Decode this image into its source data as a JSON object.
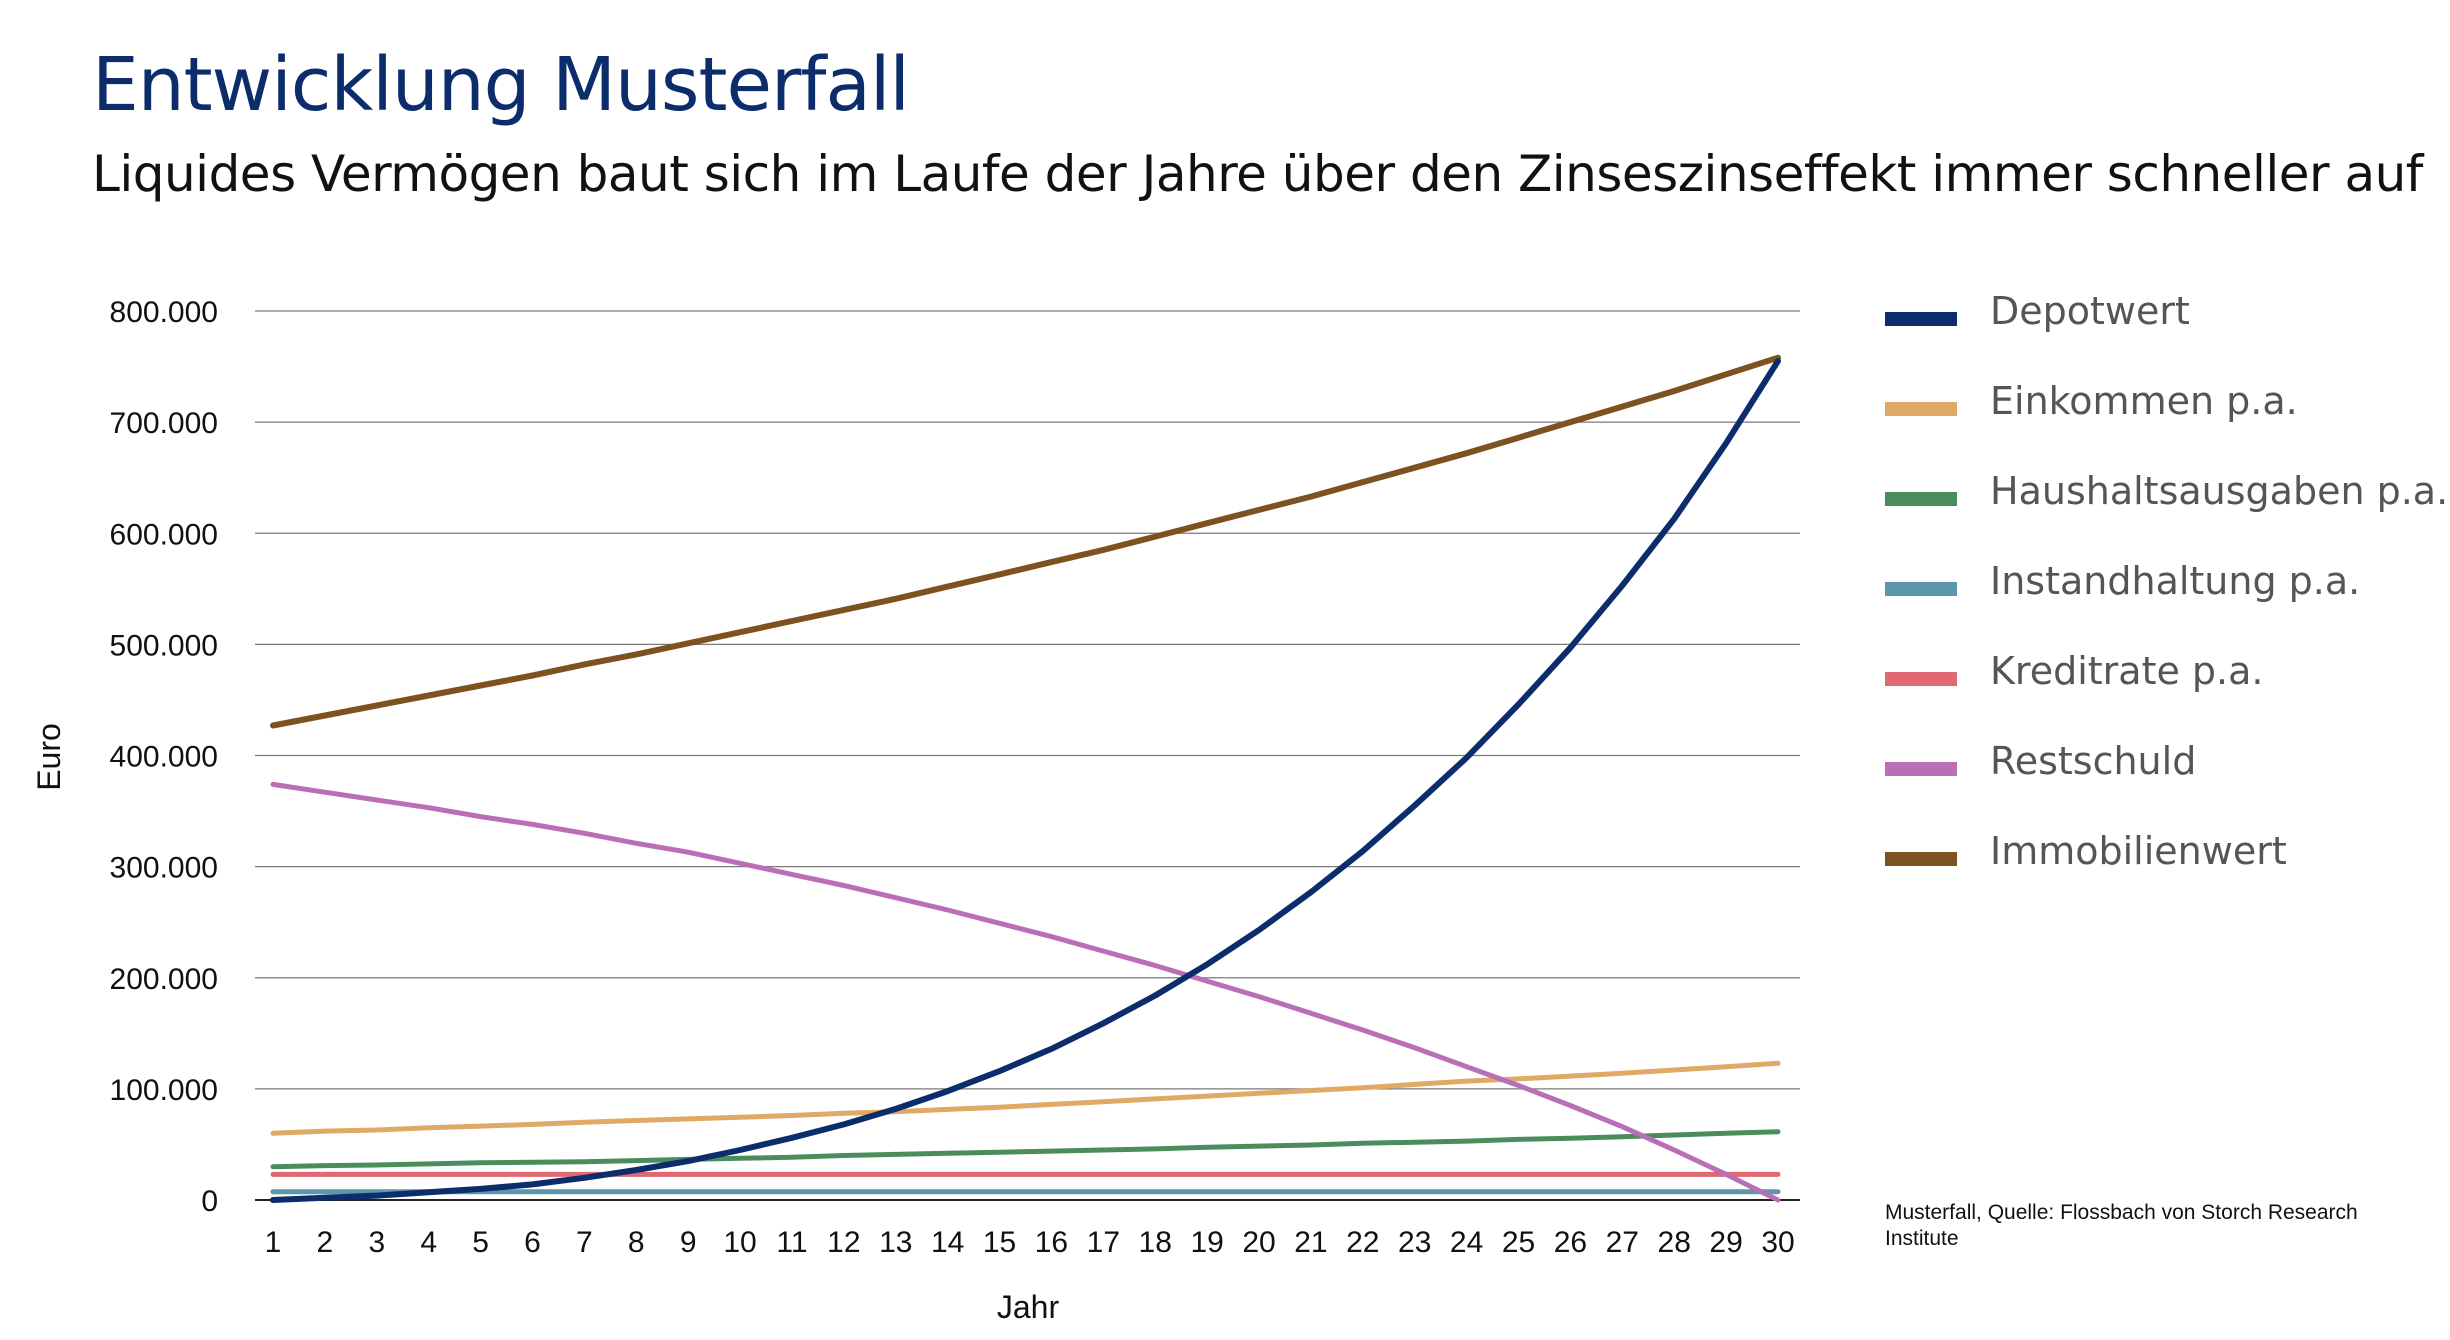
{
  "title": "Entwicklung Musterfall",
  "subtitle": "Liquides Vermögen baut sich im Laufe der Jahre über den Zinseszinseffekt immer schneller auf",
  "source": "Musterfall, Quelle: Flossbach von Storch Research Institute",
  "chart_data": {
    "type": "line",
    "xlabel": "Jahr",
    "ylabel": "Euro",
    "x": [
      1,
      2,
      3,
      4,
      5,
      6,
      7,
      8,
      9,
      10,
      11,
      12,
      13,
      14,
      15,
      16,
      17,
      18,
      19,
      20,
      21,
      22,
      23,
      24,
      25,
      26,
      27,
      28,
      29,
      30
    ],
    "ylim": [
      0,
      800000
    ],
    "yticks": [
      0,
      100000,
      200000,
      300000,
      400000,
      500000,
      600000,
      700000,
      800000
    ],
    "ytick_labels": [
      "0",
      "100.000",
      "200.000",
      "300.000",
      "400.000",
      "500.000",
      "600.000",
      "700.000",
      "800.000"
    ],
    "grid": true,
    "legend_position": "right",
    "series": [
      {
        "name": "Depotwert",
        "color": "#0b2d6b",
        "values": [
          0,
          2000,
          4000,
          7000,
          10000,
          14000,
          20000,
          27000,
          35000,
          45000,
          56000,
          68000,
          82000,
          98000,
          116000,
          136000,
          159000,
          184000,
          212000,
          243000,
          277000,
          314000,
          355000,
          398000,
          446000,
          497000,
          553000,
          613000,
          681000,
          755000
        ]
      },
      {
        "name": "Einkommen p.a.",
        "color": "#e0a965",
        "values": [
          60000,
          62000,
          63000,
          65000,
          66500,
          68000,
          70000,
          71500,
          73000,
          74500,
          76000,
          78000,
          79500,
          81500,
          83500,
          86000,
          88500,
          91000,
          93500,
          96000,
          98500,
          101000,
          104000,
          107000,
          109000,
          111500,
          114000,
          117000,
          120000,
          123000
        ]
      },
      {
        "name": "Haushaltsausgaben p.a.",
        "color": "#4a8c5c",
        "values": [
          30000,
          31000,
          31500,
          32500,
          33500,
          34000,
          34500,
          35500,
          36500,
          37500,
          38500,
          40000,
          41000,
          42000,
          43000,
          44000,
          45000,
          46000,
          47500,
          48500,
          49500,
          51000,
          52000,
          53000,
          54500,
          55500,
          57000,
          58500,
          60000,
          61500
        ]
      },
      {
        "name": "Instandhaltung p.a.",
        "color": "#5b96aa",
        "values": [
          7500,
          7500,
          7500,
          7500,
          7500,
          7500,
          7500,
          7500,
          7500,
          7500,
          7500,
          7500,
          7500,
          7500,
          7500,
          7500,
          7500,
          7500,
          7500,
          7500,
          7500,
          7500,
          7500,
          7500,
          7500,
          7500,
          7500,
          7500,
          7500,
          7500
        ]
      },
      {
        "name": "Kreditrate p.a.",
        "color": "#e06870",
        "values": [
          23000,
          23000,
          23000,
          23000,
          23000,
          23000,
          23000,
          23000,
          23000,
          23000,
          23000,
          23000,
          23000,
          23000,
          23000,
          23000,
          23000,
          23000,
          23000,
          23000,
          23000,
          23000,
          23000,
          23000,
          23000,
          23000,
          23000,
          23000,
          23000,
          23000
        ]
      },
      {
        "name": "Restschuld",
        "color": "#b86fb5",
        "values": [
          374000,
          367000,
          360000,
          353000,
          345000,
          338000,
          330000,
          321000,
          313000,
          303000,
          293000,
          283000,
          272000,
          261000,
          249000,
          237000,
          224000,
          211000,
          197000,
          183000,
          168000,
          153000,
          137000,
          120000,
          103000,
          85000,
          66000,
          45000,
          23000,
          0
        ]
      },
      {
        "name": "Immobilienwert",
        "color": "#7d5220",
        "values": [
          427000,
          436000,
          445000,
          454000,
          463000,
          472000,
          482000,
          491000,
          501000,
          511000,
          521000,
          531000,
          541000,
          552000,
          563000,
          574000,
          585000,
          597000,
          609000,
          621000,
          633000,
          646000,
          659000,
          672000,
          686000,
          700000,
          714000,
          728000,
          743000,
          758000
        ]
      }
    ]
  }
}
